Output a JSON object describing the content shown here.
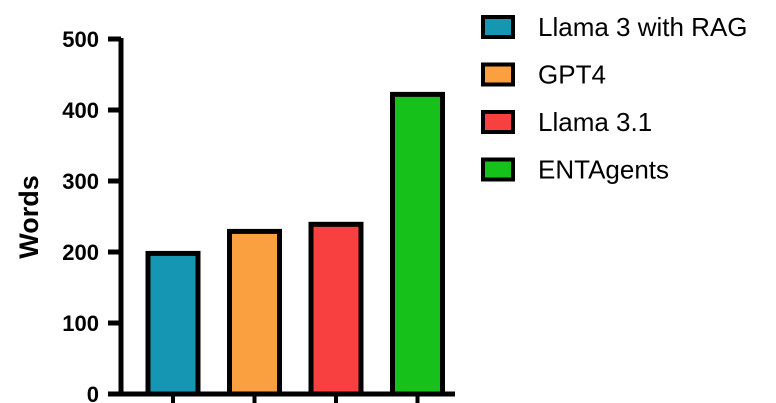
{
  "chart_data": {
    "type": "bar",
    "categories": [
      "Llama 3 with RAG",
      "GPT4",
      "Llama 3.1",
      "ENTAgents"
    ],
    "values": [
      198,
      229,
      239,
      422
    ],
    "colors": [
      "#1597B4",
      "#FBA040",
      "#F84040",
      "#16C21A"
    ],
    "ylabel": "Words",
    "ylim": [
      0,
      500
    ],
    "yticks": [
      0,
      100,
      200,
      300,
      400,
      500
    ],
    "yticks_text": [
      "0",
      "100",
      "200",
      "300",
      "400",
      "500"
    ],
    "legend": {
      "placement": "right",
      "entries": [
        "Llama 3 with RAG",
        "GPT4",
        "Llama 3.1",
        "ENTAgents"
      ]
    },
    "grid": false
  }
}
